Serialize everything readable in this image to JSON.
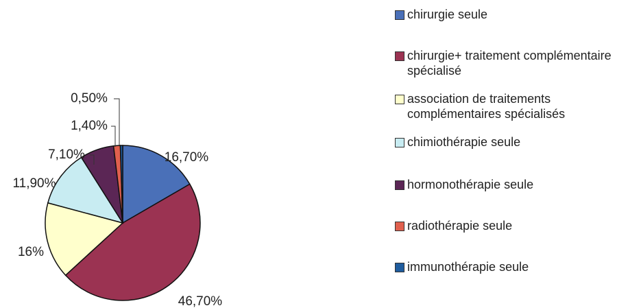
{
  "chart_data": {
    "type": "pie",
    "categories": [
      "chirurgie seule",
      "chirurgie+ traitement complémentaire spécialisé",
      "association de traitements complémentaires spécialisés",
      "chimiothérapie seule",
      "hormonothérapie seule",
      "radiothérapie seule",
      "immunothérapie seule"
    ],
    "values": [
      16.7,
      46.7,
      16,
      11.9,
      7.1,
      1.4,
      0.5
    ],
    "value_labels": [
      "16,70%",
      "46,70%",
      "16%",
      "11,90%",
      "7,10%",
      "1,40%",
      "0,50%"
    ],
    "colors": [
      "#4a70b8",
      "#9b3352",
      "#ffffcc",
      "#c8ecf2",
      "#5b2655",
      "#e0604e",
      "#1f5c9e"
    ]
  }
}
